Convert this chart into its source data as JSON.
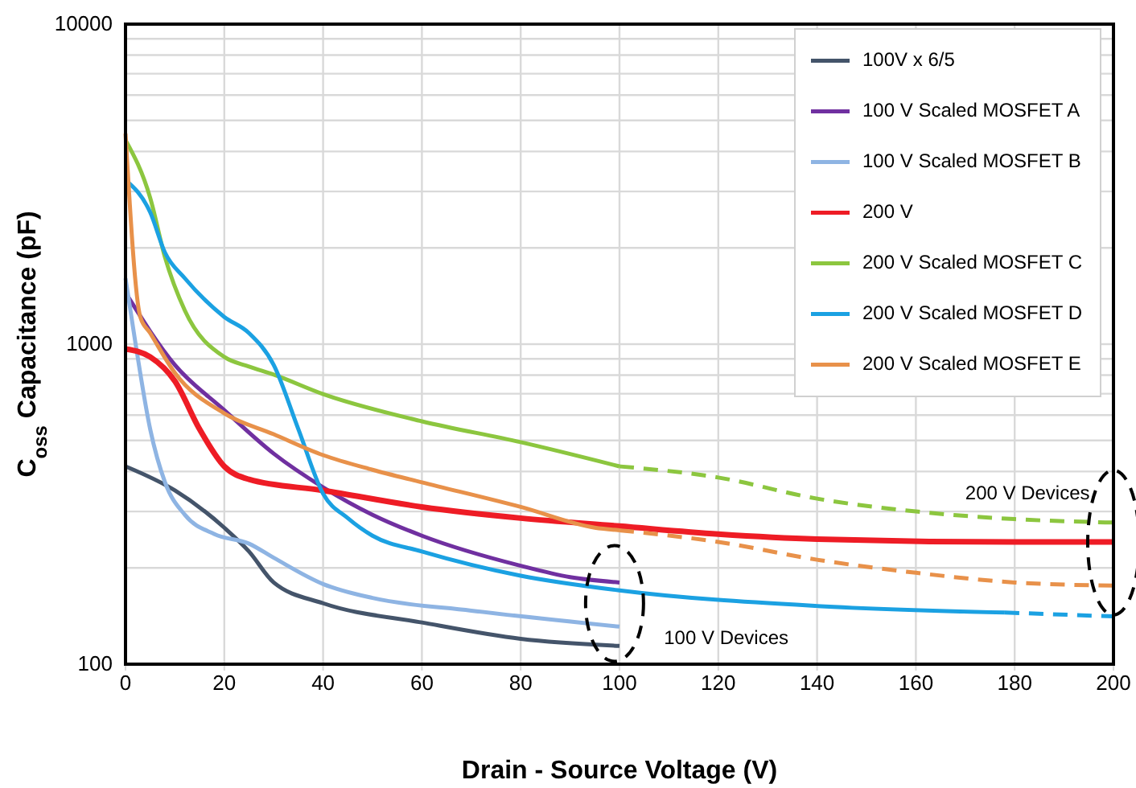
{
  "chart_data": {
    "type": "line",
    "xlabel": "Drain - Source Voltage (V)",
    "ylabel": "C$_{oss}$ Capacitance (pF)",
    "log": true,
    "grid": true,
    "legend": "top right",
    "line_style": "solid",
    "marker": "none",
    "xlim": [
      0,
      200
    ],
    "xticks": [
      0,
      20,
      40,
      60,
      80,
      100,
      120,
      140,
      160,
      180,
      200
    ],
    "ylim": [
      100,
      10000
    ],
    "yticks": [
      100,
      {
        "value": 200,
        "label": null
      },
      {
        "value": 300,
        "label": null
      },
      {
        "value": 400,
        "label": null
      },
      {
        "value": 500,
        "label": null
      },
      {
        "value": 600,
        "label": null
      },
      {
        "value": 700,
        "label": null
      },
      {
        "value": 800,
        "label": null
      },
      {
        "value": 900,
        "label": null
      },
      1000,
      {
        "value": 2000,
        "label": null
      },
      {
        "value": 3000,
        "label": null
      },
      {
        "value": 4000,
        "label": null
      },
      {
        "value": 5000,
        "label": null
      },
      {
        "value": 6000,
        "label": null
      },
      {
        "value": 7000,
        "label": null
      },
      {
        "value": 8000,
        "label": null
      },
      {
        "value": 9000,
        "label": null
      },
      10000
    ],
    "series": [
      {
        "name": "100V x 6/5",
        "color": "#44546a",
        "x": [
          0,
          10,
          20,
          25,
          30,
          40,
          60,
          80,
          100
        ],
        "values": [
          415,
          349,
          267,
          225,
          180,
          155,
          135,
          120,
          114
        ]
      },
      {
        "name": "100 V Scaled MOSFET A",
        "color": "#7030a0",
        "x": [
          0,
          10,
          20,
          30,
          40,
          50,
          60,
          80,
          90,
          100
        ],
        "values": [
          1449,
          861,
          622,
          455,
          357,
          293,
          252,
          203,
          187,
          180
        ]
      },
      {
        "name": "100 V Scaled MOSFET B",
        "color": "#8eb4e3",
        "x": [
          0,
          2,
          5,
          8,
          12,
          18,
          25,
          30,
          40,
          50,
          70,
          100
        ],
        "values": [
          1607,
          1011,
          542,
          370,
          293,
          255,
          238,
          215,
          178,
          161,
          147,
          131
        ]
      },
      {
        "name": "200 V",
        "color": "#ee1c25",
        "x": [
          0,
          5,
          10,
          15,
          20,
          25,
          40,
          60,
          80,
          100,
          120,
          140,
          180,
          200
        ],
        "values": [
          966,
          912,
          766,
          542,
          415,
          378,
          349,
          310,
          286,
          270,
          255,
          246,
          241,
          241
        ]
      },
      {
        "name": "200 V Scaled MOSFET C",
        "color": "#8cc63f",
        "x": [
          0,
          5,
          8,
          12,
          20,
          25,
          30,
          40,
          60,
          80,
          100
        ],
        "values": [
          4345,
          2864,
          1866,
          1275,
          912,
          851,
          803,
          698,
          574,
          494,
          415
        ]
      },
      {
        "name": "200 V Scaled MOSFET D",
        "color": "#1ba1e2",
        "x": [
          0,
          5,
          8,
          12,
          20,
          25,
          30,
          35,
          40,
          45,
          50,
          60,
          80,
          100,
          140,
          178
        ],
        "values": [
          3258,
          2582,
          1931,
          1607,
          1216,
          1083,
          861,
          542,
          341,
          286,
          252,
          225,
          189,
          170,
          152,
          145
        ]
      },
      {
        "name": "200 V Scaled MOSFET E",
        "color": "#e8914a",
        "x": [
          0,
          3,
          5,
          10,
          20,
          30,
          40,
          50,
          60,
          80,
          95,
          100
        ],
        "values": [
          4550,
          1216,
          1083,
          813,
          608,
          523,
          450,
          405,
          370,
          310,
          267,
          262
        ]
      },
      {
        "color": "#8cc63f",
        "line_style": "dashed",
        "x": [
          100,
          120,
          140,
          160,
          180,
          200
        ],
        "values": [
          415,
          383,
          329,
          300,
          284,
          277
        ]
      },
      {
        "color": "#e8914a",
        "line_style": "dashed",
        "x": [
          100,
          120,
          140,
          160,
          180,
          200
        ],
        "values": [
          262,
          241,
          212,
          193,
          180,
          176
        ]
      },
      {
        "color": "#1ba1e2",
        "line_style": "dashed",
        "x": [
          178,
          200
        ],
        "values": [
          145,
          141
        ]
      }
    ],
    "annotations": [
      "100 V Devices",
      "200 V Devices"
    ]
  }
}
